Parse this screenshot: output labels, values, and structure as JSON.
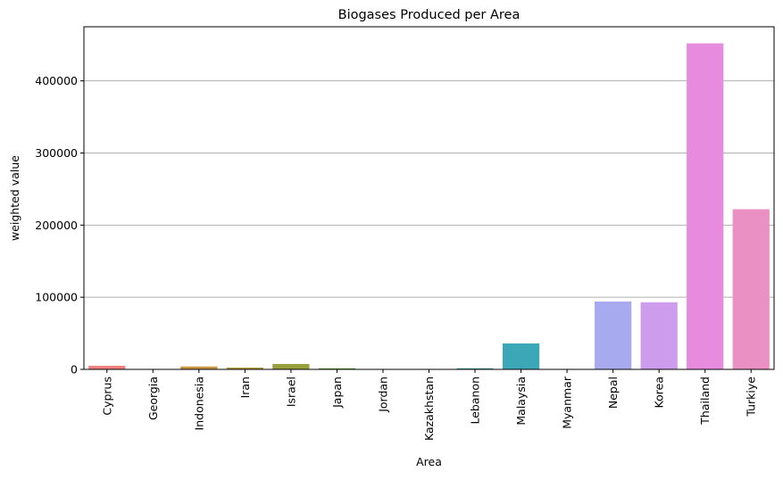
{
  "chart_data": {
    "type": "bar",
    "title": "Biogases Produced per Area",
    "xlabel": "Area",
    "ylabel": "weighted value",
    "categories": [
      "Cyprus",
      "Georgia",
      "Indonesia",
      "Iran",
      "Israel",
      "Japan",
      "Jordan",
      "Kazakhstan",
      "Lebanon",
      "Malaysia",
      "Myanmar",
      "Nepal",
      "Korea",
      "Thailand",
      "Turkiye"
    ],
    "values": [
      5000,
      500,
      4000,
      2500,
      7500,
      1500,
      300,
      200,
      1500,
      36000,
      300,
      94000,
      93000,
      452000,
      222000
    ],
    "colors": [
      "#f37f81",
      "#e7875a",
      "#c99643",
      "#b19c3d",
      "#97a13b",
      "#5fa83c",
      "#39a85c",
      "#3aa97d",
      "#38a897",
      "#3ba7b7",
      "#40a6d5",
      "#a8aaf0",
      "#ce9cec",
      "#e78bdf",
      "#eb90c3"
    ],
    "ylim": [
      0,
      475000
    ],
    "yticks": [
      0,
      100000,
      200000,
      300000,
      400000
    ],
    "ytick_labels": [
      "0",
      "100000",
      "200000",
      "300000",
      "400000"
    ],
    "grid": "y"
  }
}
